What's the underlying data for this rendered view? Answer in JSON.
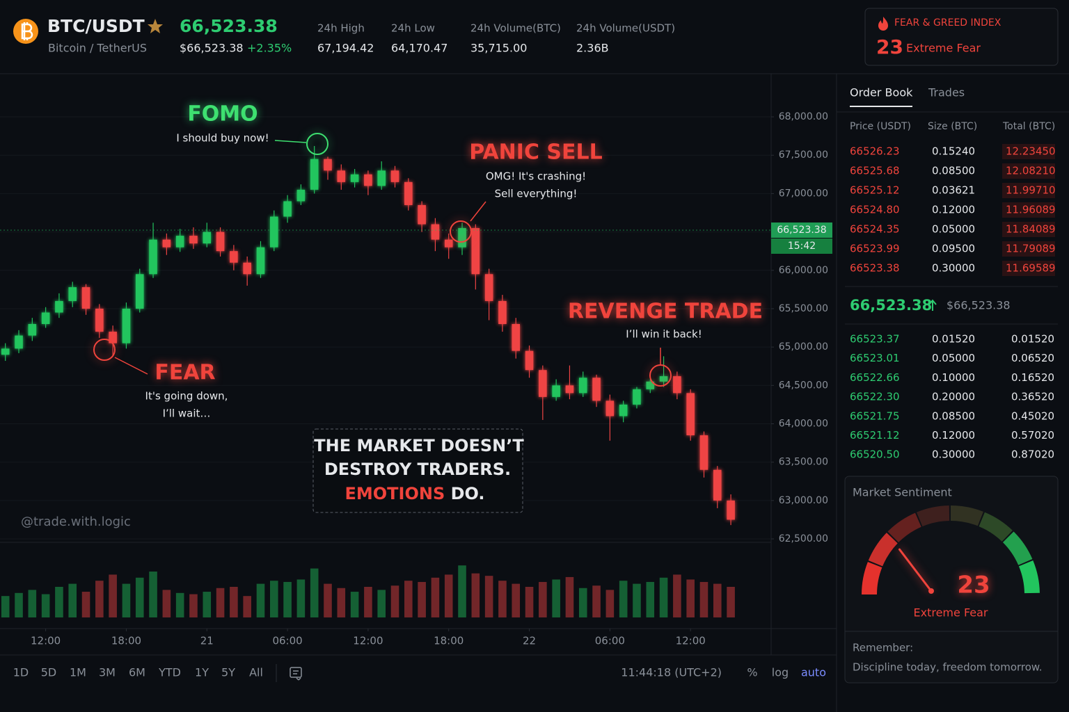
{
  "header": {
    "symbol": "BTC/USDT",
    "name": "Bitcoin / TetherUS",
    "price": "66,523.38",
    "price_usd": "$66,523.38",
    "change": "+2.35%",
    "stats": [
      {
        "label": "24h High",
        "value": "67,194.42"
      },
      {
        "label": "24h Low",
        "value": "64,170.47"
      },
      {
        "label": "24h Volume(BTC)",
        "value": "35,715.00"
      },
      {
        "label": "24h Volume(USDT)",
        "value": "2.36B"
      }
    ]
  },
  "fear_greed": {
    "title": "FEAR & GREED INDEX",
    "value": 23,
    "label": "Extreme Fear"
  },
  "chart_data": {
    "type": "candlestick",
    "x": [
      -3,
      -2,
      -1,
      0,
      1,
      2,
      3,
      4,
      5,
      6,
      7,
      8,
      9,
      10,
      11,
      12,
      13,
      14,
      15,
      16,
      17,
      18,
      19,
      20,
      21,
      22,
      23,
      24,
      25,
      26,
      27,
      28,
      29,
      30,
      31,
      32,
      33,
      34,
      35,
      36,
      37,
      38,
      39,
      40,
      41,
      42,
      43,
      44,
      45,
      46,
      47,
      48,
      49,
      50,
      51
    ],
    "open": [
      64900,
      64980,
      65150,
      65300,
      65450,
      65600,
      65780,
      65500,
      65200,
      65050,
      65500,
      65950,
      66400,
      66300,
      66450,
      66350,
      66500,
      66250,
      66100,
      65950,
      66300,
      66700,
      66900,
      67050,
      67450,
      67300,
      67150,
      67250,
      67100,
      67300,
      67150,
      66850,
      66600,
      66400,
      66300,
      66550,
      65950,
      65600,
      65300,
      64950,
      64700,
      64350,
      64500,
      64400,
      64600,
      64300,
      64100,
      64250,
      64450,
      64550,
      64620,
      64400,
      63850,
      63400,
      63000
    ],
    "high": [
      65050,
      65220,
      65380,
      65520,
      65700,
      65850,
      65820,
      65560,
      65280,
      65580,
      66020,
      66620,
      66480,
      66540,
      66560,
      66620,
      66560,
      66330,
      66180,
      66380,
      66780,
      66980,
      67120,
      67620,
      67480,
      67380,
      67320,
      67300,
      67420,
      67360,
      67200,
      66900,
      66680,
      66480,
      66620,
      66600,
      66020,
      65680,
      65380,
      65020,
      64760,
      64580,
      64760,
      64680,
      64640,
      64380,
      64300,
      64480,
      64580,
      64880,
      64680,
      64450,
      63900,
      63450,
      63080
    ],
    "low": [
      64820,
      64920,
      65080,
      65250,
      65380,
      65520,
      65420,
      65120,
      64880,
      64980,
      65450,
      65900,
      66200,
      66240,
      66280,
      66300,
      66180,
      66000,
      65800,
      65900,
      66250,
      66620,
      66850,
      67000,
      67180,
      67050,
      67080,
      66980,
      67050,
      67080,
      66780,
      66500,
      66250,
      66150,
      66200,
      65750,
      65350,
      65200,
      64850,
      64600,
      64050,
      64300,
      64320,
      64350,
      64220,
      63780,
      64020,
      64200,
      64400,
      64480,
      64320,
      63780,
      63300,
      62900,
      62680
    ],
    "close": [
      64980,
      65150,
      65300,
      65450,
      65600,
      65780,
      65500,
      65200,
      65050,
      65500,
      65950,
      66400,
      66300,
      66450,
      66350,
      66500,
      66250,
      66100,
      65950,
      66300,
      66700,
      66900,
      67050,
      67450,
      67300,
      67150,
      67250,
      67100,
      67300,
      67150,
      66850,
      66600,
      66400,
      66300,
      66550,
      65950,
      65600,
      65300,
      64950,
      64700,
      64350,
      64500,
      64400,
      64600,
      64300,
      64100,
      64250,
      64450,
      64550,
      64620,
      64400,
      63850,
      63400,
      63000,
      62750
    ],
    "volume": [
      35,
      40,
      45,
      38,
      50,
      55,
      42,
      60,
      70,
      55,
      65,
      75,
      45,
      40,
      38,
      42,
      48,
      50,
      35,
      55,
      60,
      58,
      62,
      80,
      55,
      48,
      42,
      50,
      45,
      52,
      60,
      58,
      65,
      70,
      85,
      72,
      68,
      60,
      55,
      50,
      58,
      62,
      66,
      48,
      52,
      45,
      60,
      55,
      58,
      65,
      70,
      62,
      58,
      55,
      50
    ],
    "volume_ylim": [
      0,
      100
    ],
    "xlim": [
      -3.4,
      54
    ],
    "ylim": [
      62455,
      68544
    ],
    "xticks": [
      {
        "value": 0,
        "label": "12:00"
      },
      {
        "value": 6,
        "label": "18:00"
      },
      {
        "value": 12,
        "label": "21"
      },
      {
        "value": 18,
        "label": "06:00"
      },
      {
        "value": 24,
        "label": "12:00"
      },
      {
        "value": 30,
        "label": "18:00"
      },
      {
        "value": 36,
        "label": "22"
      },
      {
        "value": 42,
        "label": "06:00"
      },
      {
        "value": 48,
        "label": "12:00"
      }
    ],
    "yticks": [
      {
        "value": 62500,
        "label": "62,500.00"
      },
      {
        "value": 63000,
        "label": "63,000.00"
      },
      {
        "value": 63500,
        "label": "63,500.00"
      },
      {
        "value": 64000,
        "label": "64,000.00"
      },
      {
        "value": 64500,
        "label": "64,500.00"
      },
      {
        "value": 65000,
        "label": "65,000.00"
      },
      {
        "value": 65500,
        "label": "65,500.00"
      },
      {
        "value": 66000,
        "label": "66,000.00"
      },
      {
        "value": 66500,
        "label": "66,500.00"
      },
      {
        "value": 67000,
        "label": "67,000.00"
      },
      {
        "value": 67500,
        "label": "67,500.00"
      },
      {
        "value": 68000,
        "label": "68,000.00"
      }
    ],
    "last_price": {
      "value": 66523.38,
      "label": "66,523.38"
    },
    "countdown": "15:42",
    "up_color": "#22c55e",
    "down_color": "#ef4444",
    "grid": true
  },
  "annotations": [
    {
      "title": "FOMO",
      "text": [
        "I should buy now!"
      ],
      "color": "#3ee070"
    },
    {
      "title": "PANIC SELL",
      "text": [
        "OMG! It's crashing!",
        "Sell everything!"
      ],
      "color": "#f0443c"
    },
    {
      "title": "FEAR",
      "text": [
        "It's going down,",
        "I’ll wait…"
      ],
      "color": "#f0443c"
    },
    {
      "title": "REVENGE TRADE",
      "text": [
        "I’ll win it back!"
      ],
      "color": "#f0443c"
    }
  ],
  "message": {
    "lines": [
      "THE MARKET DOESN’T",
      "DESTROY TRADERS."
    ],
    "highlight": "EMOTIONS",
    "end": "DO."
  },
  "watermark": "@trade.with.logic",
  "toolbar": {
    "periods": [
      "1D",
      "5D",
      "1M",
      "3M",
      "6M",
      "YTD",
      "1Y",
      "5Y",
      "All"
    ],
    "clock": "11:44:18 (UTC+2)",
    "options": [
      "%",
      "log",
      "auto"
    ]
  },
  "order_book": {
    "tabs": [
      "Order Book",
      "Trades"
    ],
    "columns": [
      "Price (USDT)",
      "Size (BTC)",
      "Total (BTC)"
    ],
    "asks": [
      [
        "66526.23",
        "0.15240",
        "12.23450"
      ],
      [
        "66525.68",
        "0.08500",
        "12.08210"
      ],
      [
        "66525.12",
        "0.03621",
        "11.99710"
      ],
      [
        "66524.80",
        "0.12000",
        "11.96089"
      ],
      [
        "66524.35",
        "0.05000",
        "11.84089"
      ],
      [
        "66523.99",
        "0.09500",
        "11.79089"
      ],
      [
        "66523.38",
        "0.30000",
        "11.69589"
      ]
    ],
    "mid": {
      "price": "66,523.38",
      "usd": "$66,523.38"
    },
    "bids": [
      [
        "66523.37",
        "0.01520",
        "0.01520"
      ],
      [
        "66523.01",
        "0.05000",
        "0.06520"
      ],
      [
        "66522.66",
        "0.10000",
        "0.16520"
      ],
      [
        "66522.30",
        "0.20000",
        "0.36520"
      ],
      [
        "66521.75",
        "0.08500",
        "0.45020"
      ],
      [
        "66521.12",
        "0.12000",
        "0.57020"
      ],
      [
        "66520.50",
        "0.30000",
        "0.87020"
      ]
    ]
  },
  "sentiment": {
    "title": "Market Sentiment",
    "value": 23,
    "lim": [
      0,
      100
    ],
    "label": "Extreme Fear",
    "note_title": "Remember:",
    "note": "Discipline today, freedom tomorrow."
  }
}
